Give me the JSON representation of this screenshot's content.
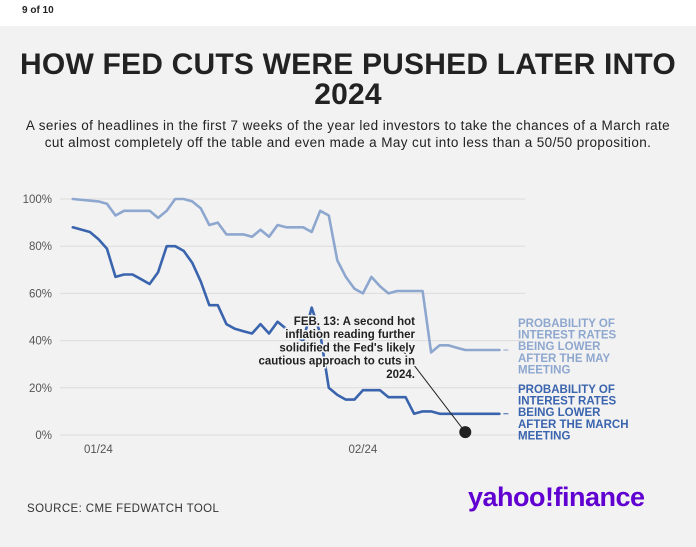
{
  "page": {
    "counter": "9 of 10"
  },
  "header": {
    "title": "HOW FED CUTS WERE PUSHED LATER INTO 2024",
    "subtitle": "A series of headlines in the first 7 weeks of the year led investors to take the chances of a March rate cut almost completely off the table and even made a May cut into less than a 50/50 proposition."
  },
  "footer": {
    "source": "SOURCE: CME FEDWATCH TOOL",
    "logo_main": "yahoo!",
    "logo_sub": "finance"
  },
  "colors": {
    "may": "#8ea7cf",
    "march": "#3a64ad",
    "grid": "#dcdcdc",
    "text": "#222222",
    "brand": "#6001d2"
  },
  "chart_data": {
    "type": "line",
    "title": "HOW FED CUTS WERE PUSHED LATER INTO 2024",
    "xlabel": "",
    "ylabel": "",
    "ylim": [
      0,
      100
    ],
    "xlim": [
      -4.5,
      50
    ],
    "grid": true,
    "y_ticks": [
      0,
      20,
      40,
      60,
      80,
      100
    ],
    "y_tick_labels": [
      "0%",
      "20%",
      "40%",
      "60%",
      "80%",
      "100%"
    ],
    "x_tick_labels": [
      {
        "x": 0,
        "label": "01/24"
      },
      {
        "x": 31,
        "label": "02/24"
      }
    ],
    "annotation": {
      "text_lines": [
        "FEB. 13: A second hot",
        "inflation reading further",
        "solidified the Fed's likely",
        "cautious approach to cuts in",
        "2024."
      ],
      "point": {
        "x": 43,
        "y": 1.2
      }
    },
    "series": [
      {
        "name": "PROBABILITY OF INTEREST RATES BEING LOWER AFTER THE MAY MEETING",
        "label_lines": [
          "PROBABILITY OF",
          "INTEREST RATES",
          "BEING LOWER",
          "AFTER THE MAY",
          "MEETING"
        ],
        "color": "#8ea7cf",
        "x": [
          -3,
          0,
          1,
          2,
          3,
          4,
          5,
          6,
          7,
          8,
          9,
          10,
          11,
          12,
          13,
          14,
          15,
          16,
          17,
          18,
          19,
          20,
          21,
          22,
          23,
          24,
          25,
          26,
          27,
          28,
          29,
          30,
          31,
          32,
          33,
          34,
          35,
          36,
          37,
          38,
          39,
          40,
          41,
          42,
          43,
          44,
          45,
          46,
          47
        ],
        "values": [
          100,
          99,
          98,
          93,
          95,
          95,
          95,
          95,
          92,
          95,
          100,
          100,
          99,
          96,
          89,
          90,
          85,
          85,
          85,
          84,
          87,
          84,
          89,
          88,
          88,
          88,
          86,
          95,
          93,
          74,
          67,
          62,
          60,
          67,
          63,
          60,
          61,
          61,
          61,
          61,
          35,
          38,
          38,
          37,
          36,
          36,
          36,
          36,
          36
        ]
      },
      {
        "name": "PROBABILITY OF INTEREST RATES BEING LOWER AFTER THE MARCH MEETING",
        "label_lines": [
          "PROBABILITY OF",
          "INTEREST RATES",
          "BEING LOWER",
          "AFTER THE MARCH",
          "MEETING"
        ],
        "color": "#3a64ad",
        "x": [
          -3,
          -1,
          0,
          1,
          2,
          3,
          4,
          5,
          6,
          7,
          8,
          9,
          10,
          11,
          12,
          13,
          14,
          15,
          16,
          17,
          18,
          19,
          20,
          21,
          22,
          23,
          24,
          25,
          26,
          27,
          28,
          29,
          30,
          31,
          32,
          33,
          34,
          35,
          36,
          37,
          38,
          39,
          40,
          41,
          42,
          43,
          44,
          45,
          46,
          47
        ],
        "values": [
          88,
          86,
          83,
          79,
          67,
          68,
          68,
          66,
          64,
          69,
          80,
          80,
          78,
          73,
          65,
          55,
          55,
          47,
          45,
          44,
          43,
          47,
          43,
          48,
          45,
          42,
          40,
          54,
          43,
          20,
          17,
          15,
          15,
          19,
          19,
          19,
          16,
          16,
          16,
          9,
          10,
          10,
          9,
          9,
          9,
          9,
          9,
          9,
          9,
          9
        ]
      }
    ]
  }
}
